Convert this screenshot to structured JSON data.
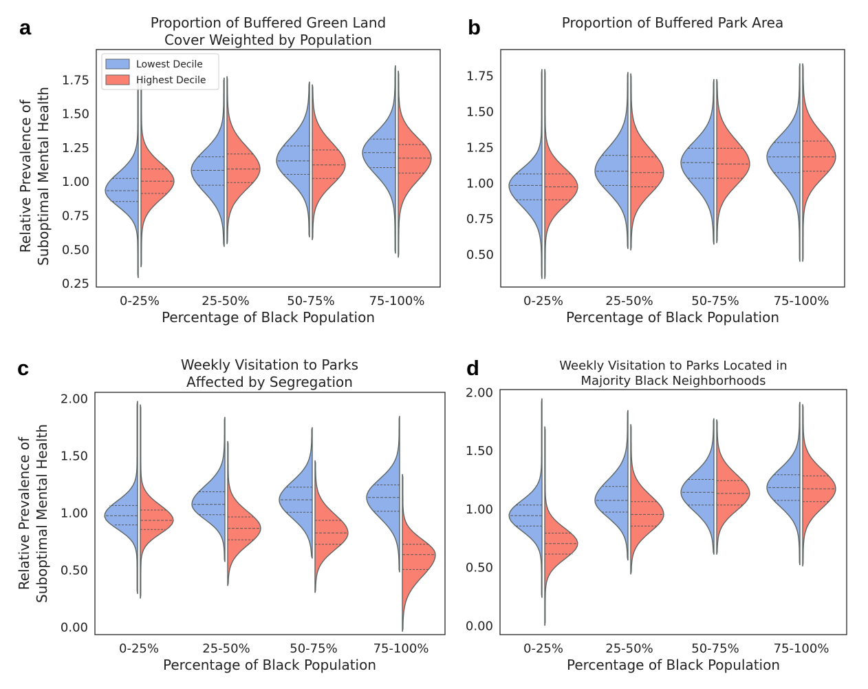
{
  "colors": {
    "lowest": "#8fb0ea",
    "highest": "#fa8072",
    "outline": "#5c6464",
    "frame": "#222222"
  },
  "legend": {
    "items": [
      "Lowest Decile",
      "Highest Decile"
    ],
    "location": "upper-left"
  },
  "chart_data": [
    {
      "panel": "a",
      "type": "violin",
      "title_lines": [
        "Proportion of Buffered Green Land",
        "Cover Weighted by Population"
      ],
      "xlabel": "Percentage of Black Population",
      "ylabel_lines": [
        "Relative Prevalence of",
        "Suboptimal Mental Health"
      ],
      "categories": [
        "0-25%",
        "25-50%",
        "50-75%",
        "75-100%"
      ],
      "ylim": [
        0.22,
        1.97
      ],
      "yticks": [
        "0.25",
        "0.50",
        "0.75",
        "1.00",
        "1.25",
        "1.50",
        "1.75"
      ],
      "series": [
        {
          "name": "Lowest Decile",
          "min": [
            0.29,
            0.52,
            0.59,
            0.47
          ],
          "max": [
            1.78,
            1.76,
            1.73,
            1.85
          ],
          "median": [
            0.93,
            1.08,
            1.15,
            1.21
          ],
          "q1": [
            0.85,
            0.97,
            1.05,
            1.1
          ],
          "q3": [
            1.02,
            1.18,
            1.26,
            1.31
          ]
        },
        {
          "name": "Highest Decile",
          "min": [
            0.37,
            0.54,
            0.57,
            0.44
          ],
          "max": [
            1.76,
            1.77,
            1.71,
            1.81
          ],
          "median": [
            1.0,
            1.09,
            1.12,
            1.17
          ],
          "q1": [
            0.91,
            0.99,
            1.02,
            1.06
          ],
          "q3": [
            1.09,
            1.2,
            1.23,
            1.27
          ]
        }
      ]
    },
    {
      "panel": "b",
      "type": "violin",
      "title_lines": [
        "Proportion of Buffered Park Area"
      ],
      "xlabel": "Percentage of Black Population",
      "ylabel_lines": [],
      "categories": [
        "0-25%",
        "25-50%",
        "50-75%",
        "75-100%"
      ],
      "ylim": [
        0.27,
        1.93
      ],
      "yticks": [
        "0.50",
        "0.75",
        "1.00",
        "1.25",
        "1.50",
        "1.75"
      ],
      "series": [
        {
          "name": "Lowest Decile",
          "min": [
            0.33,
            0.54,
            0.57,
            0.45
          ],
          "max": [
            1.79,
            1.77,
            1.72,
            1.83
          ],
          "median": [
            0.98,
            1.08,
            1.14,
            1.18
          ],
          "q1": [
            0.88,
            0.98,
            1.03,
            1.07
          ],
          "q3": [
            1.06,
            1.19,
            1.24,
            1.28
          ]
        },
        {
          "name": "Highest Decile",
          "min": [
            0.33,
            0.53,
            0.58,
            0.45
          ],
          "max": [
            1.79,
            1.76,
            1.72,
            1.83
          ],
          "median": [
            0.97,
            1.07,
            1.13,
            1.18
          ],
          "q1": [
            0.88,
            0.97,
            1.03,
            1.08
          ],
          "q3": [
            1.06,
            1.18,
            1.24,
            1.29
          ]
        }
      ]
    },
    {
      "panel": "c",
      "type": "violin",
      "title_lines": [
        "Weekly Visitation to Parks",
        "Affected by Segregation"
      ],
      "xlabel": "Percentage of Black Population",
      "ylabel_lines": [
        "Relative Prevalence of",
        "Suboptimal Mental Health"
      ],
      "categories": [
        "0-25%",
        "25-50%",
        "50-75%",
        "75-100%"
      ],
      "ylim": [
        -0.07,
        2.05
      ],
      "yticks": [
        "0.00",
        "0.50",
        "1.00",
        "1.50",
        "2.00"
      ],
      "series": [
        {
          "name": "Lowest Decile",
          "min": [
            0.29,
            0.57,
            0.6,
            0.48
          ],
          "max": [
            1.97,
            1.83,
            1.74,
            1.84
          ],
          "median": [
            0.97,
            1.07,
            1.11,
            1.13
          ],
          "q1": [
            0.89,
            0.98,
            1.0,
            1.01
          ],
          "q3": [
            1.06,
            1.18,
            1.22,
            1.24
          ]
        },
        {
          "name": "Highest Decile",
          "min": [
            0.25,
            0.36,
            0.3,
            -0.04
          ],
          "max": [
            1.94,
            1.62,
            1.45,
            1.33
          ],
          "median": [
            0.93,
            0.86,
            0.82,
            0.63
          ],
          "q1": [
            0.85,
            0.76,
            0.72,
            0.5
          ],
          "q3": [
            1.02,
            0.96,
            0.93,
            0.72
          ]
        }
      ]
    },
    {
      "panel": "d",
      "type": "violin",
      "title_lines": [
        "Weekly Visitation to Parks Located in",
        "Majority Black Neighborhoods"
      ],
      "xlabel": "Percentage of Black Population",
      "ylabel_lines": [],
      "categories": [
        "0-25%",
        "25-50%",
        "50-75%",
        "75-100%"
      ],
      "ylim": [
        -0.08,
        2.02
      ],
      "yticks": [
        "0.00",
        "0.50",
        "1.00",
        "1.50",
        "2.00"
      ],
      "series": [
        {
          "name": "Lowest Decile",
          "min": [
            0.24,
            0.56,
            0.61,
            0.52
          ],
          "max": [
            1.94,
            1.84,
            1.77,
            1.91
          ],
          "median": [
            0.94,
            1.07,
            1.14,
            1.18
          ],
          "q1": [
            0.85,
            0.97,
            1.03,
            1.07
          ],
          "q3": [
            1.03,
            1.19,
            1.25,
            1.29
          ]
        },
        {
          "name": "Highest Decile",
          "min": [
            0.0,
            0.44,
            0.61,
            0.51
          ],
          "max": [
            1.7,
            1.72,
            1.76,
            1.89
          ],
          "median": [
            0.7,
            0.95,
            1.13,
            1.17
          ],
          "q1": [
            0.61,
            0.85,
            1.03,
            1.06
          ],
          "q3": [
            0.79,
            1.06,
            1.24,
            1.28
          ]
        }
      ]
    }
  ]
}
